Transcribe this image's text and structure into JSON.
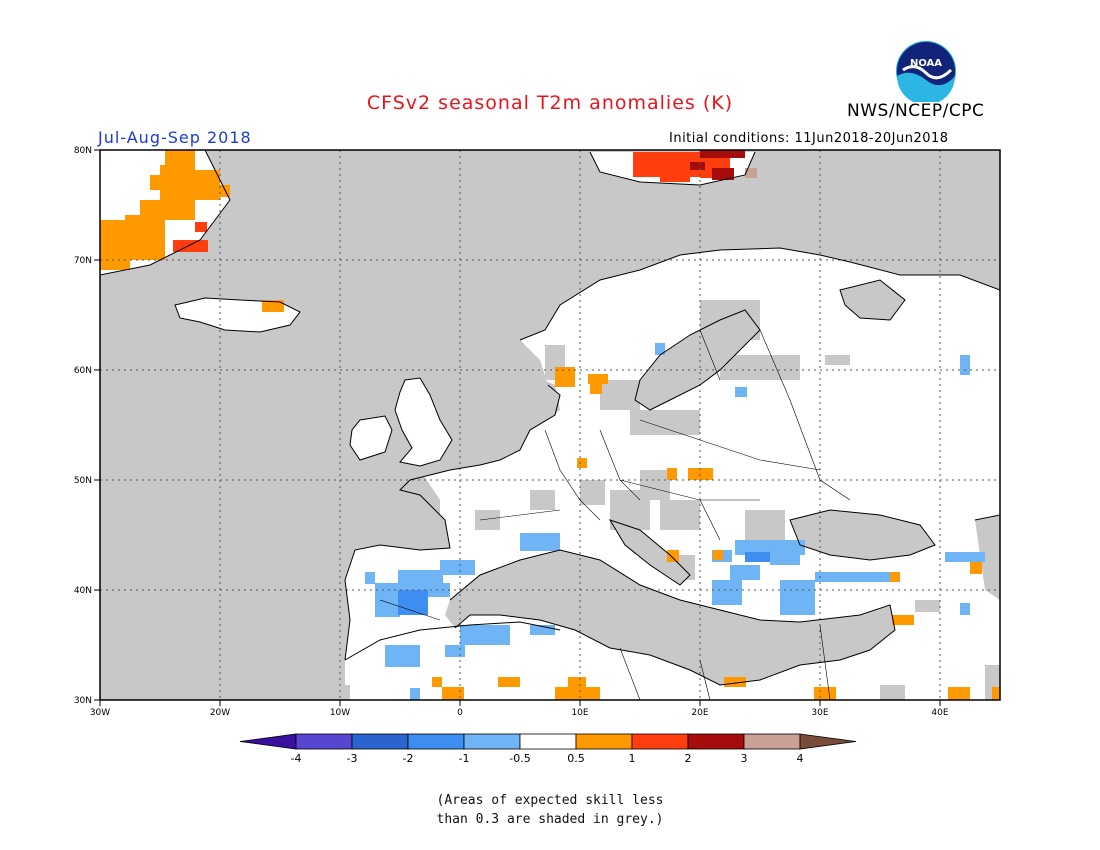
{
  "header": {
    "title": "CFSv2 seasonal T2m anomalies (K)",
    "period": "Jul-Aug-Sep 2018",
    "agency": "NWS/NCEP/CPC",
    "initial_conditions": "Initial conditions: 11Jun2018-20Jun2018",
    "logo_text": "NOAA"
  },
  "map": {
    "lon_range": [
      -30,
      45
    ],
    "lat_range": [
      30,
      80
    ],
    "lat_labels": [
      "80N",
      "70N",
      "60N",
      "50N",
      "40N",
      "30N"
    ],
    "lon_labels": [
      "30W",
      "20W",
      "10W",
      "0",
      "10E",
      "20E",
      "30E",
      "40E"
    ],
    "colors": {
      "ocean_grey": "#c8c8c8",
      "land_white": "#ffffff",
      "grey_skill": "#c8c8c8"
    }
  },
  "colorbar": {
    "labels": [
      "-4",
      "-3",
      "-2",
      "-1",
      "-0.5",
      "0.5",
      "1",
      "2",
      "3",
      "4"
    ],
    "colors": [
      "#3a0fa0",
      "#5746d0",
      "#2b63cf",
      "#3d8ef0",
      "#6fb5f5",
      "#ffffff",
      "#ff9900",
      "#ff3d0d",
      "#a50d0d",
      "#c9a195",
      "#7a4a3a"
    ]
  },
  "note": {
    "line1": "(Areas of expected skill less",
    "line2": "than 0.3 are shaded in grey.)"
  }
}
